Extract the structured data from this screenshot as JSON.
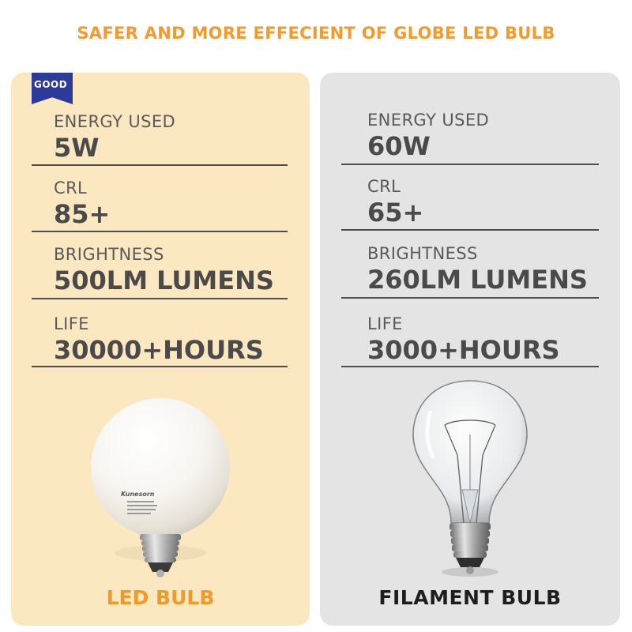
{
  "headline": "SAFER AND MORE EFFECIENT OF GLOBE LED BULB",
  "badge": "GOOD",
  "led": {
    "caption": "LED BULB",
    "brand": "Kunesorn",
    "specs": [
      {
        "label": "ENERGY USED",
        "value": "5W"
      },
      {
        "label": "CRL",
        "value": "85+"
      },
      {
        "label": "BRIGHTNESS",
        "value": "500LM LUMENS"
      },
      {
        "label": "LIFE",
        "value": "30000+HOURS"
      }
    ]
  },
  "filament": {
    "caption": "FILAMENT BULB",
    "specs": [
      {
        "label": "ENERGY USED",
        "value": "60W"
      },
      {
        "label": "CRL",
        "value": "65+"
      },
      {
        "label": "BRIGHTNESS",
        "value": "260LM LUMENS"
      },
      {
        "label": "LIFE",
        "value": "3000+HOURS"
      }
    ]
  },
  "colors": {
    "headline": "#f29a2e",
    "led_panel": "#fbe8c0",
    "filament_panel": "#e4e4e4",
    "badge": "#2c3a99",
    "led_caption": "#f09a2c",
    "filament_caption": "#1e1e1e"
  }
}
